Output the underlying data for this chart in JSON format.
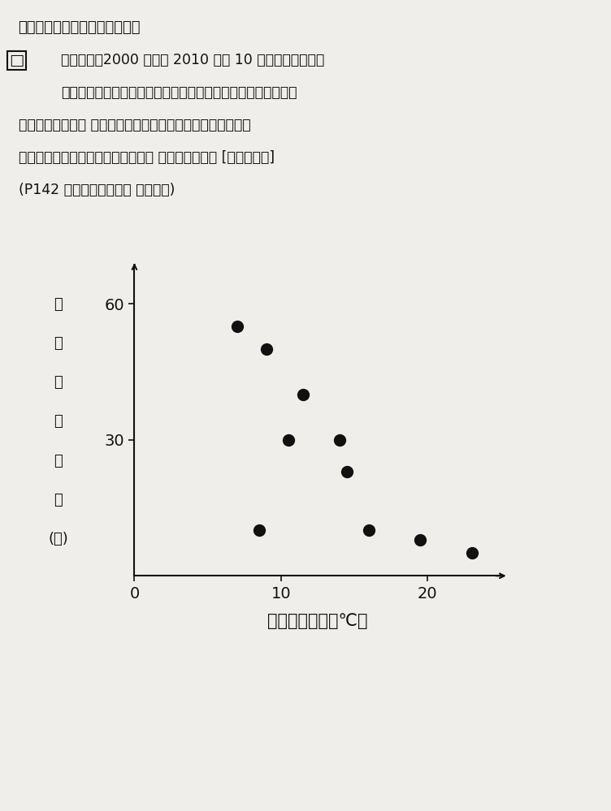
{
  "title_lines": [
    "下の表は，2000 年から 2010 年の 10 年間の，ある市の",
    "年間平均気温と年間積雪日数を，散布図にまとめたものです。",
    "この散布図から， 年間平均気温と年間積雪日数との間には，",
    "どのような関係があるといえるか， 考えてみよう。 [思・判・表]",
    "(P142 の考えてみよう？ 　の応用)"
  ],
  "header_text": "はすべて解答欄に書きなさい。",
  "xlabel": "年間平均気温（℃）",
  "ylabel_chars": [
    "年",
    "間",
    "積",
    "雪",
    "日",
    "数",
    "(日)"
  ],
  "x_data": [
    7.0,
    9.0,
    11.5,
    10.5,
    14.0,
    8.5,
    14.5,
    16.0,
    19.5,
    23.0
  ],
  "y_data": [
    55,
    50,
    40,
    30,
    30,
    10,
    23,
    10,
    8,
    5
  ],
  "xlim": [
    0,
    25
  ],
  "ylim": [
    0,
    68
  ],
  "xticks": [
    0,
    10,
    20
  ],
  "yticks": [
    30,
    60
  ],
  "bg_color": "#f0eeea",
  "dot_color": "#111111",
  "dot_size": 100,
  "axis_color": "#111111",
  "text_color": "#111111"
}
